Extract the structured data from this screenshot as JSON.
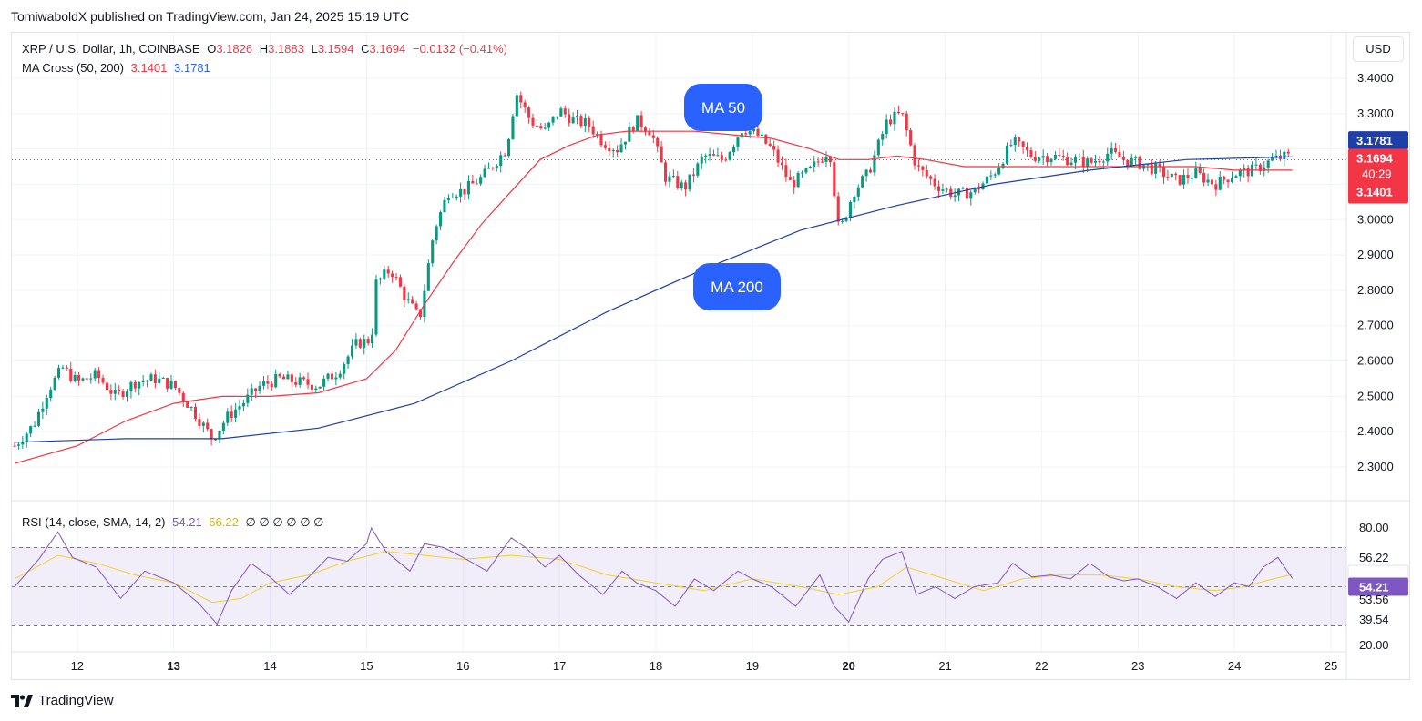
{
  "header": {
    "published": "TomiwaboldX published on TradingView.com, Jan 24, 2025 15:19 UTC",
    "symbol": "XRP / U.S. Dollar, 1h, COINBASE",
    "o_label": "O",
    "o_value": "3.1826",
    "h_label": "H",
    "h_value": "3.1883",
    "l_label": "L",
    "l_value": "3.1594",
    "c_label": "C",
    "c_value": "3.1694",
    "change": "−0.0132 (−0.41%)",
    "ma_label": "MA Cross (50, 200)",
    "ma50_value": "3.1401",
    "ma200_value": "3.1781",
    "rsi_label": "RSI (14, close, SMA, 14, 2)",
    "rsi_value": "54.21",
    "rsi_ma_value": "56.22",
    "rsi_null": "∅ ∅ ∅ ∅ ∅ ∅"
  },
  "currency": "USD",
  "branding": {
    "icon": "tradingview-logo-icon",
    "name": "TradingView"
  },
  "colors": {
    "up": "#089981",
    "down": "#f23645",
    "ma50": "#f23645",
    "ma200": "#1e3fa8",
    "callout": "#2962ff",
    "rsi": "#7e57c2",
    "rsi_ma": "#f2d02c"
  },
  "annotations": {
    "ma50_label": "MA 50",
    "ma200_label": "MA 200"
  },
  "price_badges": {
    "ma200": "3.1781",
    "last": "3.1694",
    "countdown": "40:29",
    "ma50": "3.1401"
  },
  "rsi_badges": {
    "rsi_ma": "56.22",
    "rsi": "54.21",
    "level_a": "53.56",
    "level_b": "39.54"
  },
  "chart_data": [
    {
      "type": "candlestick",
      "title": "XRP / U.S. Dollar, 1h, COINBASE",
      "y_ticks": [
        "3.4000",
        "3.3000",
        "3.2000",
        "3.1000",
        "3.0000",
        "2.9000",
        "2.8000",
        "2.7000",
        "2.6000",
        "2.5000",
        "2.4000",
        "2.3000"
      ],
      "x_ticks": [
        "12",
        "13",
        "14",
        "15",
        "16",
        "17",
        "18",
        "19",
        "20",
        "21",
        "22",
        "23",
        "24",
        "25"
      ],
      "bold_x_ticks": [
        "13",
        "20"
      ],
      "ylim": [
        2.3,
        3.4
      ],
      "x_range_days": [
        11.35,
        25
      ],
      "close_path": [
        [
          11.35,
          2.36
        ],
        [
          11.55,
          2.42
        ],
        [
          11.7,
          2.52
        ],
        [
          11.85,
          2.58
        ],
        [
          12.0,
          2.54
        ],
        [
          12.2,
          2.56
        ],
        [
          12.4,
          2.5
        ],
        [
          12.6,
          2.54
        ],
        [
          12.8,
          2.55
        ],
        [
          13.0,
          2.53
        ],
        [
          13.2,
          2.46
        ],
        [
          13.4,
          2.38
        ],
        [
          13.55,
          2.44
        ],
        [
          13.75,
          2.49
        ],
        [
          13.9,
          2.53
        ],
        [
          14.1,
          2.55
        ],
        [
          14.3,
          2.54
        ],
        [
          14.5,
          2.53
        ],
        [
          14.7,
          2.57
        ],
        [
          14.9,
          2.65
        ],
        [
          15.05,
          2.66
        ],
        [
          15.1,
          2.82
        ],
        [
          15.25,
          2.86
        ],
        [
          15.4,
          2.78
        ],
        [
          15.55,
          2.72
        ],
        [
          15.7,
          2.97
        ],
        [
          15.85,
          3.08
        ],
        [
          16.0,
          3.08
        ],
        [
          16.2,
          3.12
        ],
        [
          16.45,
          3.2
        ],
        [
          16.55,
          3.36
        ],
        [
          16.7,
          3.28
        ],
        [
          16.85,
          3.25
        ],
        [
          17.0,
          3.31
        ],
        [
          17.15,
          3.28
        ],
        [
          17.3,
          3.27
        ],
        [
          17.45,
          3.22
        ],
        [
          17.6,
          3.2
        ],
        [
          17.8,
          3.28
        ],
        [
          17.95,
          3.25
        ],
        [
          18.1,
          3.12
        ],
        [
          18.3,
          3.09
        ],
        [
          18.5,
          3.18
        ],
        [
          18.7,
          3.17
        ],
        [
          18.9,
          3.26
        ],
        [
          19.05,
          3.24
        ],
        [
          19.2,
          3.2
        ],
        [
          19.4,
          3.1
        ],
        [
          19.6,
          3.14
        ],
        [
          19.8,
          3.2
        ],
        [
          19.9,
          2.96
        ],
        [
          20.05,
          3.08
        ],
        [
          20.2,
          3.13
        ],
        [
          20.4,
          3.28
        ],
        [
          20.55,
          3.3
        ],
        [
          20.7,
          3.15
        ],
        [
          20.9,
          3.1
        ],
        [
          21.1,
          3.07
        ],
        [
          21.3,
          3.08
        ],
        [
          21.5,
          3.13
        ],
        [
          21.7,
          3.22
        ],
        [
          21.9,
          3.18
        ],
        [
          22.1,
          3.18
        ],
        [
          22.3,
          3.17
        ],
        [
          22.5,
          3.16
        ],
        [
          22.7,
          3.19
        ],
        [
          22.85,
          3.17
        ],
        [
          23.0,
          3.16
        ],
        [
          23.2,
          3.14
        ],
        [
          23.4,
          3.11
        ],
        [
          23.6,
          3.13
        ],
        [
          23.8,
          3.1
        ],
        [
          24.0,
          3.13
        ],
        [
          24.2,
          3.14
        ],
        [
          24.4,
          3.17
        ],
        [
          24.55,
          3.18
        ],
        [
          24.6,
          3.169
        ]
      ],
      "series": [
        {
          "name": "MA 50",
          "points": [
            [
              11.35,
              2.31
            ],
            [
              12.0,
              2.36
            ],
            [
              12.5,
              2.43
            ],
            [
              13.0,
              2.48
            ],
            [
              13.5,
              2.5
            ],
            [
              14.0,
              2.5
            ],
            [
              14.5,
              2.51
            ],
            [
              15.0,
              2.55
            ],
            [
              15.3,
              2.63
            ],
            [
              15.6,
              2.76
            ],
            [
              15.9,
              2.88
            ],
            [
              16.2,
              2.99
            ],
            [
              16.5,
              3.08
            ],
            [
              16.8,
              3.17
            ],
            [
              17.1,
              3.21
            ],
            [
              17.4,
              3.24
            ],
            [
              17.7,
              3.25
            ],
            [
              18.0,
              3.25
            ],
            [
              18.4,
              3.25
            ],
            [
              18.8,
              3.24
            ],
            [
              19.2,
              3.23
            ],
            [
              19.6,
              3.2
            ],
            [
              19.9,
              3.17
            ],
            [
              20.2,
              3.17
            ],
            [
              20.5,
              3.18
            ],
            [
              20.8,
              3.17
            ],
            [
              21.2,
              3.15
            ],
            [
              21.6,
              3.15
            ],
            [
              22.0,
              3.15
            ],
            [
              22.4,
              3.15
            ],
            [
              22.8,
              3.15
            ],
            [
              23.2,
              3.15
            ],
            [
              23.6,
              3.15
            ],
            [
              24.0,
              3.14
            ],
            [
              24.6,
              3.14
            ]
          ]
        },
        {
          "name": "MA 200",
          "points": [
            [
              11.35,
              2.37
            ],
            [
              12.5,
              2.38
            ],
            [
              13.5,
              2.38
            ],
            [
              14.5,
              2.41
            ],
            [
              15.5,
              2.48
            ],
            [
              16.5,
              2.6
            ],
            [
              17.5,
              2.74
            ],
            [
              18.5,
              2.86
            ],
            [
              19.5,
              2.97
            ],
            [
              20.5,
              3.04
            ],
            [
              21.5,
              3.1
            ],
            [
              22.5,
              3.14
            ],
            [
              23.5,
              3.17
            ],
            [
              24.6,
              3.178
            ]
          ]
        }
      ]
    },
    {
      "type": "line",
      "title": "RSI (14, close, SMA, 14, 2)",
      "y_ticks": [
        "80.00",
        "20.00"
      ],
      "bands": [
        70,
        30
      ],
      "ylim": [
        20,
        80
      ],
      "series": [
        {
          "name": "RSI",
          "points": [
            [
              11.35,
              50
            ],
            [
              11.6,
              64
            ],
            [
              11.8,
              78
            ],
            [
              11.95,
              65
            ],
            [
              12.2,
              60
            ],
            [
              12.45,
              44
            ],
            [
              12.7,
              58
            ],
            [
              13.0,
              52
            ],
            [
              13.25,
              42
            ],
            [
              13.45,
              31
            ],
            [
              13.6,
              48
            ],
            [
              13.8,
              62
            ],
            [
              14.0,
              55
            ],
            [
              14.2,
              46
            ],
            [
              14.4,
              55
            ],
            [
              14.6,
              65
            ],
            [
              14.8,
              63
            ],
            [
              15.0,
              72
            ],
            [
              15.05,
              80
            ],
            [
              15.2,
              68
            ],
            [
              15.45,
              58
            ],
            [
              15.6,
              72
            ],
            [
              15.8,
              70
            ],
            [
              16.0,
              65
            ],
            [
              16.25,
              58
            ],
            [
              16.5,
              75
            ],
            [
              16.65,
              70
            ],
            [
              16.85,
              60
            ],
            [
              17.0,
              66
            ],
            [
              17.2,
              56
            ],
            [
              17.45,
              46
            ],
            [
              17.65,
              58
            ],
            [
              17.8,
              52
            ],
            [
              18.0,
              48
            ],
            [
              18.2,
              40
            ],
            [
              18.4,
              54
            ],
            [
              18.6,
              48
            ],
            [
              18.85,
              58
            ],
            [
              19.0,
              54
            ],
            [
              19.2,
              50
            ],
            [
              19.45,
              40
            ],
            [
              19.7,
              56
            ],
            [
              19.85,
              40
            ],
            [
              20.0,
              32
            ],
            [
              20.2,
              54
            ],
            [
              20.35,
              64
            ],
            [
              20.55,
              68
            ],
            [
              20.7,
              46
            ],
            [
              20.9,
              50
            ],
            [
              21.1,
              44
            ],
            [
              21.3,
              50
            ],
            [
              21.55,
              52
            ],
            [
              21.7,
              62
            ],
            [
              21.9,
              55
            ],
            [
              22.1,
              56
            ],
            [
              22.3,
              54
            ],
            [
              22.5,
              62
            ],
            [
              22.7,
              55
            ],
            [
              22.85,
              53
            ],
            [
              23.0,
              54
            ],
            [
              23.2,
              50
            ],
            [
              23.4,
              44
            ],
            [
              23.6,
              52
            ],
            [
              23.8,
              45
            ],
            [
              24.0,
              52
            ],
            [
              24.15,
              50
            ],
            [
              24.3,
              60
            ],
            [
              24.45,
              65
            ],
            [
              24.6,
              54.21
            ]
          ]
        },
        {
          "name": "RSI MA",
          "points": [
            [
              11.35,
              54
            ],
            [
              11.8,
              66
            ],
            [
              12.2,
              62
            ],
            [
              12.6,
              56
            ],
            [
              13.0,
              52
            ],
            [
              13.4,
              42
            ],
            [
              13.7,
              44
            ],
            [
              14.0,
              52
            ],
            [
              14.4,
              56
            ],
            [
              14.8,
              63
            ],
            [
              15.2,
              68
            ],
            [
              15.6,
              66
            ],
            [
              16.0,
              64
            ],
            [
              16.5,
              66
            ],
            [
              17.0,
              64
            ],
            [
              17.5,
              56
            ],
            [
              18.0,
              52
            ],
            [
              18.5,
              48
            ],
            [
              19.0,
              54
            ],
            [
              19.5,
              50
            ],
            [
              19.9,
              46
            ],
            [
              20.3,
              50
            ],
            [
              20.6,
              60
            ],
            [
              21.0,
              54
            ],
            [
              21.4,
              48
            ],
            [
              21.8,
              54
            ],
            [
              22.2,
              56
            ],
            [
              22.6,
              56
            ],
            [
              23.0,
              54
            ],
            [
              23.4,
              50
            ],
            [
              23.8,
              48
            ],
            [
              24.1,
              50
            ],
            [
              24.4,
              54
            ],
            [
              24.6,
              56.22
            ]
          ]
        }
      ]
    }
  ]
}
